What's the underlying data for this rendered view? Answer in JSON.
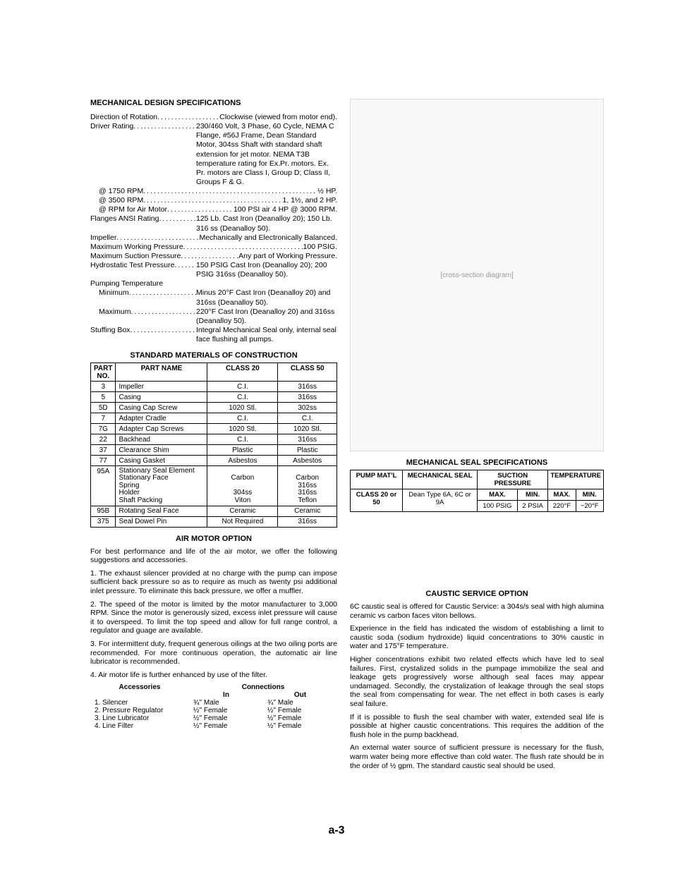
{
  "headings": {
    "mech_design": "MECHANICAL DESIGN SPECIFICATIONS",
    "materials": "STANDARD MATERIALS OF CONSTRUCTION",
    "air_motor": "AIR MOTOR OPTION",
    "seal_spec": "MECHANICAL SEAL SPECIFICATIONS",
    "caustic": "CAUSTIC SERVICE OPTION",
    "accessories": "Accessories",
    "connections": "Connections"
  },
  "specs": [
    {
      "label": "Direction of Rotation",
      "value": "Clockwise (viewed from motor end)."
    },
    {
      "label": "Driver Rating",
      "value": "230/460 Volt, 3 Phase, 60 Cycle, NEMA C Flange, #56J Frame, Dean Standard Motor, 304ss Shaft with standard shaft extension for jet motor. NEMA T3B temperature rating for Ex.Pr. motors. Ex. Pr. motors are Class I, Group D; Class II, Groups F & G."
    },
    {
      "label": "@ 1750 RPM",
      "value": "½ HP.",
      "indent": true
    },
    {
      "label": "@ 3500 RPM",
      "value": "1, 1½, and 2 HP.",
      "indent": true
    },
    {
      "label": "@ RPM for Air Motor",
      "value": "100 PSI air 4 HP @ 3000 RPM.",
      "indent": true
    },
    {
      "label": "Flanges ANSI Rating",
      "value": "125 Lb. Cast Iron (Deanalloy 20); 150 Lb. 316 ss (Deanalloy 50)."
    },
    {
      "label": "Impeller",
      "value": "Mechanically and Electronically Balanced."
    },
    {
      "label": "Maximum Working Pressure",
      "value": "100 PSIG."
    },
    {
      "label": "Maximum Suction Pressure",
      "value": "Any part of Working Pressure."
    },
    {
      "label": "Hydrostatic Test Pressure",
      "value": "150 PSIG Cast Iron (Deanalloy 20); 200 PSIG 316ss (Deanalloy 50)."
    },
    {
      "label": "Pumping Temperature",
      "value": ""
    },
    {
      "label": "Minimum",
      "value": "Minus 20°F Cast Iron (Deanalloy 20) and 316ss (Deanalloy 50).",
      "indent": true
    },
    {
      "label": "Maximum",
      "value": "220°F Cast Iron (Deanalloy 20) and 316ss (Deanalloy 50).",
      "indent": true
    },
    {
      "label": "Stuffing Box",
      "value": "Integral Mechanical Seal only, internal seal face flushing all pumps."
    }
  ],
  "materials": {
    "headers": [
      "PART NO.",
      "PART NAME",
      "CLASS 20",
      "CLASS 50"
    ],
    "rows": [
      [
        "3",
        "Impeller",
        "C.I.",
        "316ss"
      ],
      [
        "5",
        "Casing",
        "C.I.",
        "316ss"
      ],
      [
        "5D",
        "Casing Cap Screw",
        "1020 Stl.",
        "302ss"
      ],
      [
        "7",
        "Adapter Cradle",
        "C.I.",
        "C.I."
      ],
      [
        "7G",
        "Adapter Cap Screws",
        "1020 Stl.",
        "1020 Stl."
      ],
      [
        "22",
        "Backhead",
        "C.I.",
        "316ss"
      ],
      [
        "37",
        "Clearance Shim",
        "Plastic",
        "Plastic"
      ],
      [
        "77",
        "Casing Gasket",
        "Asbestos",
        "Asbestos"
      ],
      [
        "95A",
        "Stationary Seal Element\nStationary Face\nSpring\nHolder\nShaft Packing",
        "\nCarbon\n\n304ss\nViton",
        "\nCarbon\n316ss\n316ss\nTeflon"
      ],
      [
        "95B",
        "Rotating Seal Face",
        "Ceramic",
        "Ceramic"
      ],
      [
        "375",
        "Seal Dowel Pin",
        "Not Required",
        "316ss"
      ]
    ]
  },
  "air_motor": {
    "intro": "For best performance and life of the air motor, we offer the following suggestions and accessories.",
    "p1": "1. The exhaust silencer provided at no charge with the pump can impose sufficient back pressure so as to require as much as twenty psi additional inlet pressure. To eliminate this back pressure, we offer a muffler.",
    "p2": "2. The speed of the motor is limited by the motor manufacturer to 3,000 RPM. Since the motor is generously sized, excess inlet pressure will cause it to overspeed. To limit the top speed and allow for full range control, a regulator and guage are available.",
    "p3": "3. For intermittent duty, frequent generous oilings at the two oiling ports are recommended. For more continuous operation, the automatic air line lubricator is recommended.",
    "p4": "4. Air motor life is further enhanced by use of the filter."
  },
  "accessories": {
    "col_in": "In",
    "col_out": "Out",
    "rows": [
      [
        "1. Silencer",
        "¾'' Male",
        "¾'' Male"
      ],
      [
        "2. Pressure Regulator",
        "½'' Female",
        "½'' Female"
      ],
      [
        "3. Line Lubricator",
        "½'' Female",
        "½'' Female"
      ],
      [
        "4. Line Filter",
        "½'' Female",
        "½'' Female"
      ]
    ]
  },
  "seal_table": {
    "headers": [
      "PUMP MAT'L",
      "MECHANICAL SEAL",
      "SUCTION PRESSURE",
      "TEMPERATURE"
    ],
    "sub": [
      "",
      "",
      "MAX.",
      "MIN.",
      "MAX.",
      "MIN."
    ],
    "row": [
      "CLASS 20 or 50",
      "Dean Type 6A, 6C or 9A",
      "100 PSIG",
      "2 PSIA",
      "220°F",
      "−20°F"
    ]
  },
  "caustic": {
    "p1": "6C caustic seal is offered for Caustic Service: a 304s/s seal with high alumina ceramic vs carbon faces viton bellows.",
    "p2": "Experience in the field has indicated the wisdom of establishing a limit to caustic soda (sodium hydroxide) liquid concentrations to 30% caustic in water and 175°F temperature.",
    "p3": "Higher concentrations exhibit two related effects which have led to seal failures. First, crystalized solids in the pumpage immobilize the seal and leakage gets progressively worse although seal faces may appear undamaged. Secondly, the crystalization of leakage through the seal stops the seal from compensating for wear. The net effect in both cases is early seal failure.",
    "p4": "If it is possible to flush the seal chamber with water, extended seal life is possible at higher caustic concentrations. This requires the addition of the flush hole in the pump backhead.",
    "p5": "An external water source of sufficient pressure is necessary for the flush, warm water being more effective than cold water. The flush rate should be in the order of ½ gpm. The standard caustic seal should be used."
  },
  "pagenum": "a-3",
  "diagram_placeholder": "[cross-section diagram]"
}
